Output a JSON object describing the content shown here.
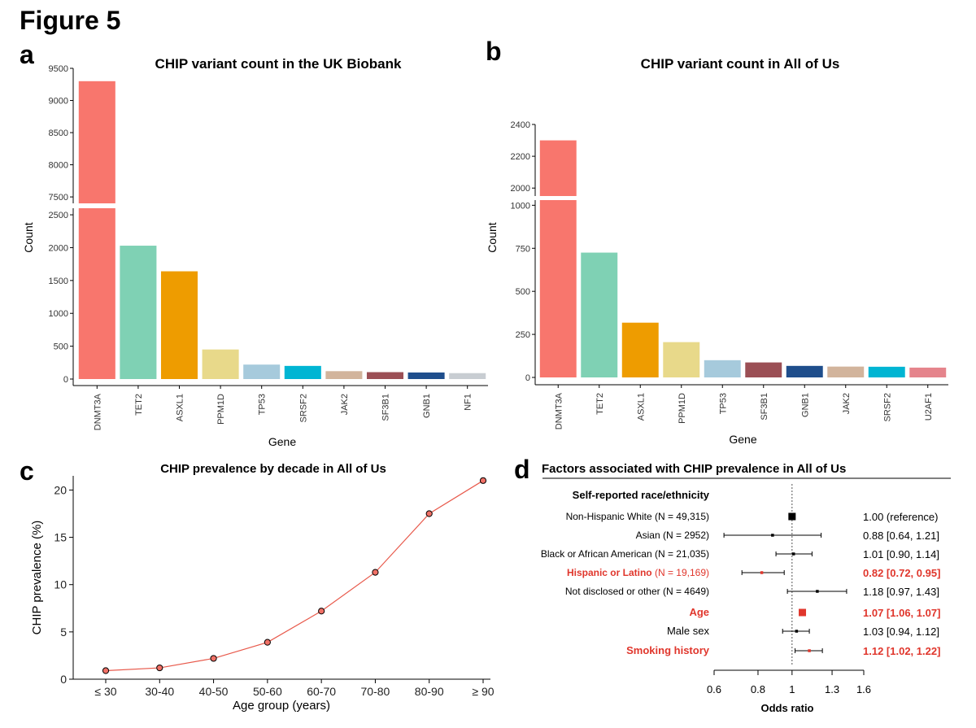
{
  "figure_title": "Figure 5",
  "panel_letters": {
    "a": "a",
    "b": "b",
    "c": "c",
    "d": "d"
  },
  "colors": {
    "DNMT3A": "#F8766D",
    "TET2": "#7FD1B4",
    "ASXL1": "#EE9C00",
    "PPM1D": "#E8D98A",
    "TP53": "#A6CADC",
    "SRSF2": "#00B5D3",
    "JAK2": "#D2B49C",
    "SF3B1": "#9B4F55",
    "GNB1": "#1F4E8C",
    "NF1": "#C8CDD2",
    "U2AF1": "#E5848C",
    "line": "#E8594B",
    "highlight": "#E0362C"
  },
  "chart_data": [
    {
      "id": "a",
      "type": "bar",
      "title": "CHIP variant count in the UK Biobank",
      "xlabel": "Gene",
      "ylabel": "Count",
      "categories": [
        "DNMT3A",
        "TET2",
        "ASXL1",
        "PPM1D",
        "TP53",
        "SRSF2",
        "JAK2",
        "SF3B1",
        "GNB1",
        "NF1"
      ],
      "values": [
        9300,
        2030,
        1640,
        450,
        220,
        200,
        120,
        105,
        100,
        90
      ],
      "axis_break": true,
      "upper_ylim": [
        7400,
        9500
      ],
      "upper_ticks": [
        "7500",
        "8000",
        "8500",
        "9000",
        "9500"
      ],
      "lower_ylim": [
        0,
        2600
      ],
      "lower_ticks": [
        "0",
        "500",
        "1000",
        "1500",
        "2000",
        "2500"
      ]
    },
    {
      "id": "b",
      "type": "bar",
      "title": "CHIP variant count in All of Us",
      "xlabel": "Gene",
      "ylabel": "Count",
      "categories": [
        "DNMT3A",
        "TET2",
        "ASXL1",
        "PPM1D",
        "TP53",
        "SF3B1",
        "GNB1",
        "JAK2",
        "SRSF2",
        "U2AF1"
      ],
      "values": [
        2300,
        725,
        318,
        205,
        100,
        87,
        67,
        63,
        62,
        57
      ],
      "axis_break": true,
      "upper_ylim": [
        1950,
        2400
      ],
      "upper_ticks": [
        "2000",
        "2200",
        "2400"
      ],
      "lower_ylim": [
        0,
        1030
      ],
      "lower_ticks": [
        "0",
        "250",
        "500",
        "750",
        "1000"
      ]
    },
    {
      "id": "c",
      "type": "line",
      "title": "CHIP prevalence by decade in All of Us",
      "xlabel": "Age group (years)",
      "ylabel": "CHIP prevalence (%)",
      "categories": [
        "≤ 30",
        "30-40",
        "40-50",
        "50-60",
        "60-70",
        "70-80",
        "80-90",
        "≥ 90"
      ],
      "values": [
        0.9,
        1.2,
        2.2,
        3.9,
        7.2,
        11.3,
        17.5,
        21.0
      ],
      "ylim": [
        0,
        21.5
      ],
      "yticks": [
        "0",
        "5",
        "10",
        "15",
        "20"
      ]
    },
    {
      "id": "d",
      "type": "forest",
      "title": "Factors associated with CHIP prevalence in All of Us",
      "xlabel": "Odds ratio",
      "xscale": "log",
      "xlim": [
        0.6,
        1.6
      ],
      "xticks": [
        "0.6",
        "0.8",
        "1",
        "1.3",
        "1.6"
      ],
      "reference_line": 1.0,
      "section_header": "Self-reported race/ethnicity",
      "rows": [
        {
          "label": "Non-Hispanic White",
          "n": " (N = 49,315)",
          "or": 1.0,
          "lo": null,
          "hi": null,
          "text": "1.00 (reference)",
          "highlight": false,
          "reference": true
        },
        {
          "label": "Asian",
          "n": " (N = 2952)",
          "or": 0.88,
          "lo": 0.64,
          "hi": 1.21,
          "text": "0.88 [0.64, 1.21]",
          "highlight": false,
          "reference": false
        },
        {
          "label": "Black or African American",
          "n": " (N = 21,035)",
          "or": 1.01,
          "lo": 0.9,
          "hi": 1.14,
          "text": "1.01 [0.90, 1.14]",
          "highlight": false,
          "reference": false
        },
        {
          "label": "Hispanic or Latino",
          "n": " (N = 19,169)",
          "or": 0.82,
          "lo": 0.72,
          "hi": 0.95,
          "text": "0.82 [0.72, 0.95]",
          "highlight": true,
          "reference": false
        },
        {
          "label": "Not disclosed or other",
          "n": " (N = 4649)",
          "or": 1.18,
          "lo": 0.97,
          "hi": 1.43,
          "text": "1.18 [0.97, 1.43]",
          "highlight": false,
          "reference": false
        },
        {
          "label": "Age",
          "n": "",
          "or": 1.07,
          "lo": 1.06,
          "hi": 1.07,
          "text": "1.07 [1.06, 1.07]",
          "highlight": true,
          "reference": false,
          "big": true
        },
        {
          "label": "Male sex",
          "n": "",
          "or": 1.03,
          "lo": 0.94,
          "hi": 1.12,
          "text": "1.03 [0.94, 1.12]",
          "highlight": false,
          "reference": false
        },
        {
          "label": "Smoking history",
          "n": "",
          "or": 1.12,
          "lo": 1.02,
          "hi": 1.22,
          "text": "1.12 [1.02, 1.22]",
          "highlight": true,
          "reference": false
        }
      ]
    }
  ]
}
